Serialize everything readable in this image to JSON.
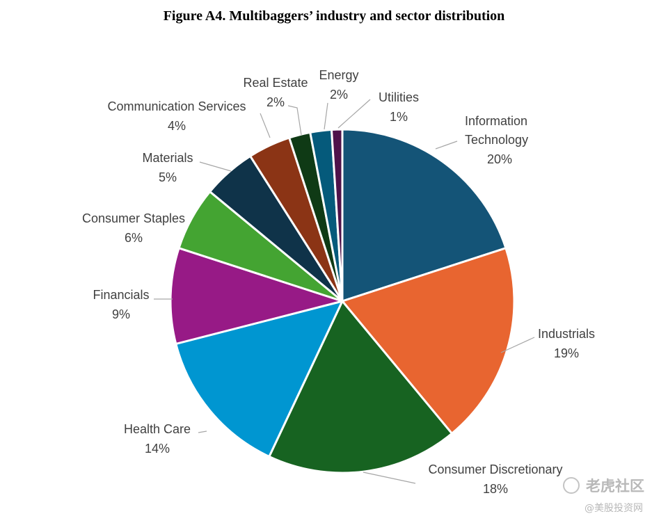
{
  "chart_data": {
    "type": "pie",
    "title": "Figure A4. Multibaggers’ industry and sector distribution",
    "slices": [
      {
        "label": "Information Technology",
        "value": 20,
        "value_label": "20%",
        "color": "#145477"
      },
      {
        "label": "Industrials",
        "value": 19,
        "value_label": "19%",
        "color": "#e86530"
      },
      {
        "label": "Consumer Discretionary",
        "value": 18,
        "value_label": "18%",
        "color": "#176321"
      },
      {
        "label": "Health Care",
        "value": 14,
        "value_label": "14%",
        "color": "#0096d1"
      },
      {
        "label": "Financials",
        "value": 9,
        "value_label": "9%",
        "color": "#971a86"
      },
      {
        "label": "Consumer Staples",
        "value": 6,
        "value_label": "6%",
        "color": "#44a432"
      },
      {
        "label": "Materials",
        "value": 5,
        "value_label": "5%",
        "color": "#0f3349"
      },
      {
        "label": "Communication Services",
        "value": 4,
        "value_label": "4%",
        "color": "#8b3415"
      },
      {
        "label": "Real Estate",
        "value": 2,
        "value_label": "2%",
        "color": "#0f3a15"
      },
      {
        "label": "Energy",
        "value": 2,
        "value_label": "2%",
        "color": "#055a7b"
      },
      {
        "label": "Utilities",
        "value": 1,
        "value_label": "1%",
        "color": "#4f124a"
      }
    ],
    "start_angle": "12 o'clock",
    "direction": "clockwise",
    "legend": "none"
  },
  "watermark": {
    "main": "老虎社区",
    "sub": "@美股投资网"
  }
}
